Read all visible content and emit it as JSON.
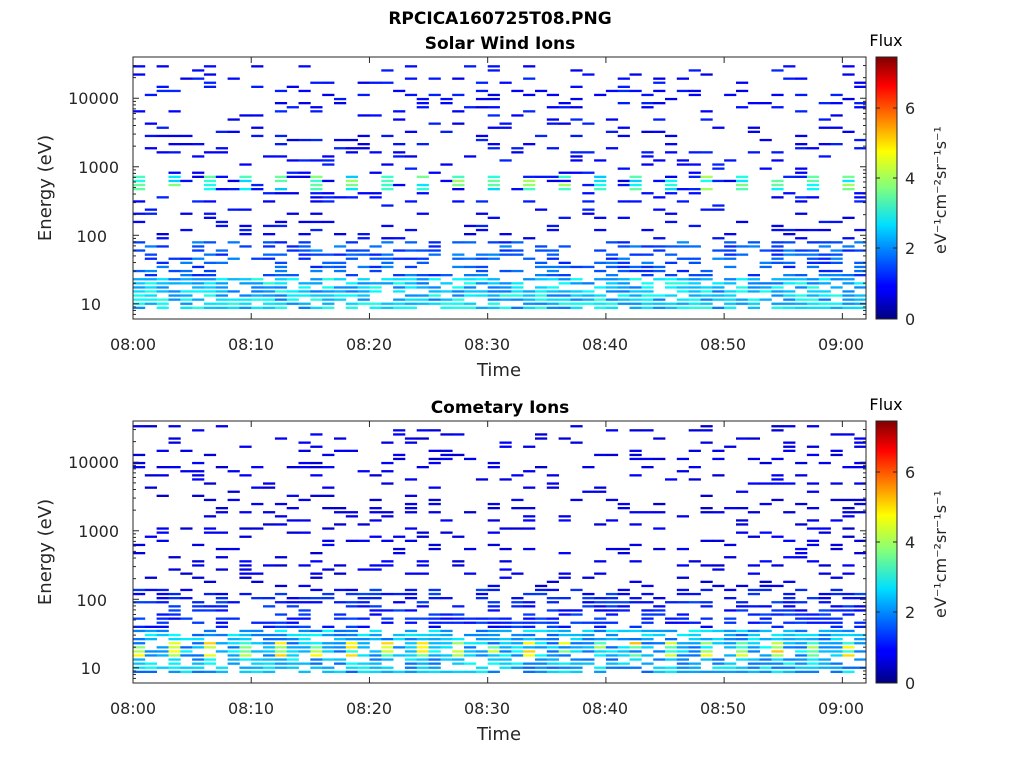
{
  "figure": {
    "title": "RPCICA160725T08.PNG"
  },
  "chart_data": [
    {
      "type": "heatmap",
      "title": "Solar Wind Ions",
      "xlabel": "Time",
      "ylabel": "Energy (eV)",
      "y_scale": "log",
      "ylim": [
        6,
        40000
      ],
      "xlim": [
        "08:00",
        "09:02"
      ],
      "x_ticks": [
        "08:00",
        "08:10",
        "08:20",
        "08:30",
        "08:40",
        "08:50",
        "09:00"
      ],
      "y_ticks": [
        "10",
        "100",
        "1000",
        "10000"
      ],
      "colorbar": {
        "title": "Flux",
        "label": "eV⁻¹cm⁻²sr⁻¹s⁻¹",
        "range": [
          0,
          7.3
        ],
        "ticks": [
          "0",
          "2",
          "4",
          "6"
        ],
        "colormap": "jet"
      },
      "bands": [
        {
          "energy_range_eV": [
            8,
            25
          ],
          "flux_approx": 2.5,
          "pattern": "dense, some cells ~3.2"
        },
        {
          "energy_range_eV": [
            25,
            80
          ],
          "flux_approx": 1.6,
          "pattern": "moderate"
        },
        {
          "energy_range_eV": [
            450,
            750
          ],
          "flux_approx": 3.3,
          "pattern": "periodic peaks every ~3 min"
        },
        {
          "energy_range_eV": [
            80,
            30000
          ],
          "flux_approx": 1.0,
          "pattern": "sparse background"
        }
      ]
    },
    {
      "type": "heatmap",
      "title": "Cometary Ions",
      "xlabel": "Time",
      "ylabel": "Energy (eV)",
      "y_scale": "log",
      "ylim": [
        6,
        40000
      ],
      "xlim": [
        "08:00",
        "09:02"
      ],
      "x_ticks": [
        "08:00",
        "08:10",
        "08:20",
        "08:30",
        "08:40",
        "08:50",
        "09:00"
      ],
      "y_ticks": [
        "10",
        "100",
        "1000",
        "10000"
      ],
      "colorbar": {
        "title": "Flux",
        "label": "eV⁻¹cm⁻²sr⁻¹s⁻¹",
        "range": [
          0,
          7.3
        ],
        "ticks": [
          "0",
          "2",
          "4",
          "6"
        ],
        "colormap": "jet"
      },
      "bands": [
        {
          "energy_range_eV": [
            13,
            25
          ],
          "flux_approx": 4.2,
          "pattern": "periodic peaks every ~3 min (yellow)"
        },
        {
          "energy_range_eV": [
            8,
            35
          ],
          "flux_approx": 2.3,
          "pattern": "dense"
        },
        {
          "energy_range_eV": [
            35,
            150
          ],
          "flux_approx": 1.2,
          "pattern": "moderate"
        },
        {
          "energy_range_eV": [
            150,
            35000
          ],
          "flux_approx": 0.8,
          "pattern": "sparse scattered"
        }
      ]
    }
  ]
}
